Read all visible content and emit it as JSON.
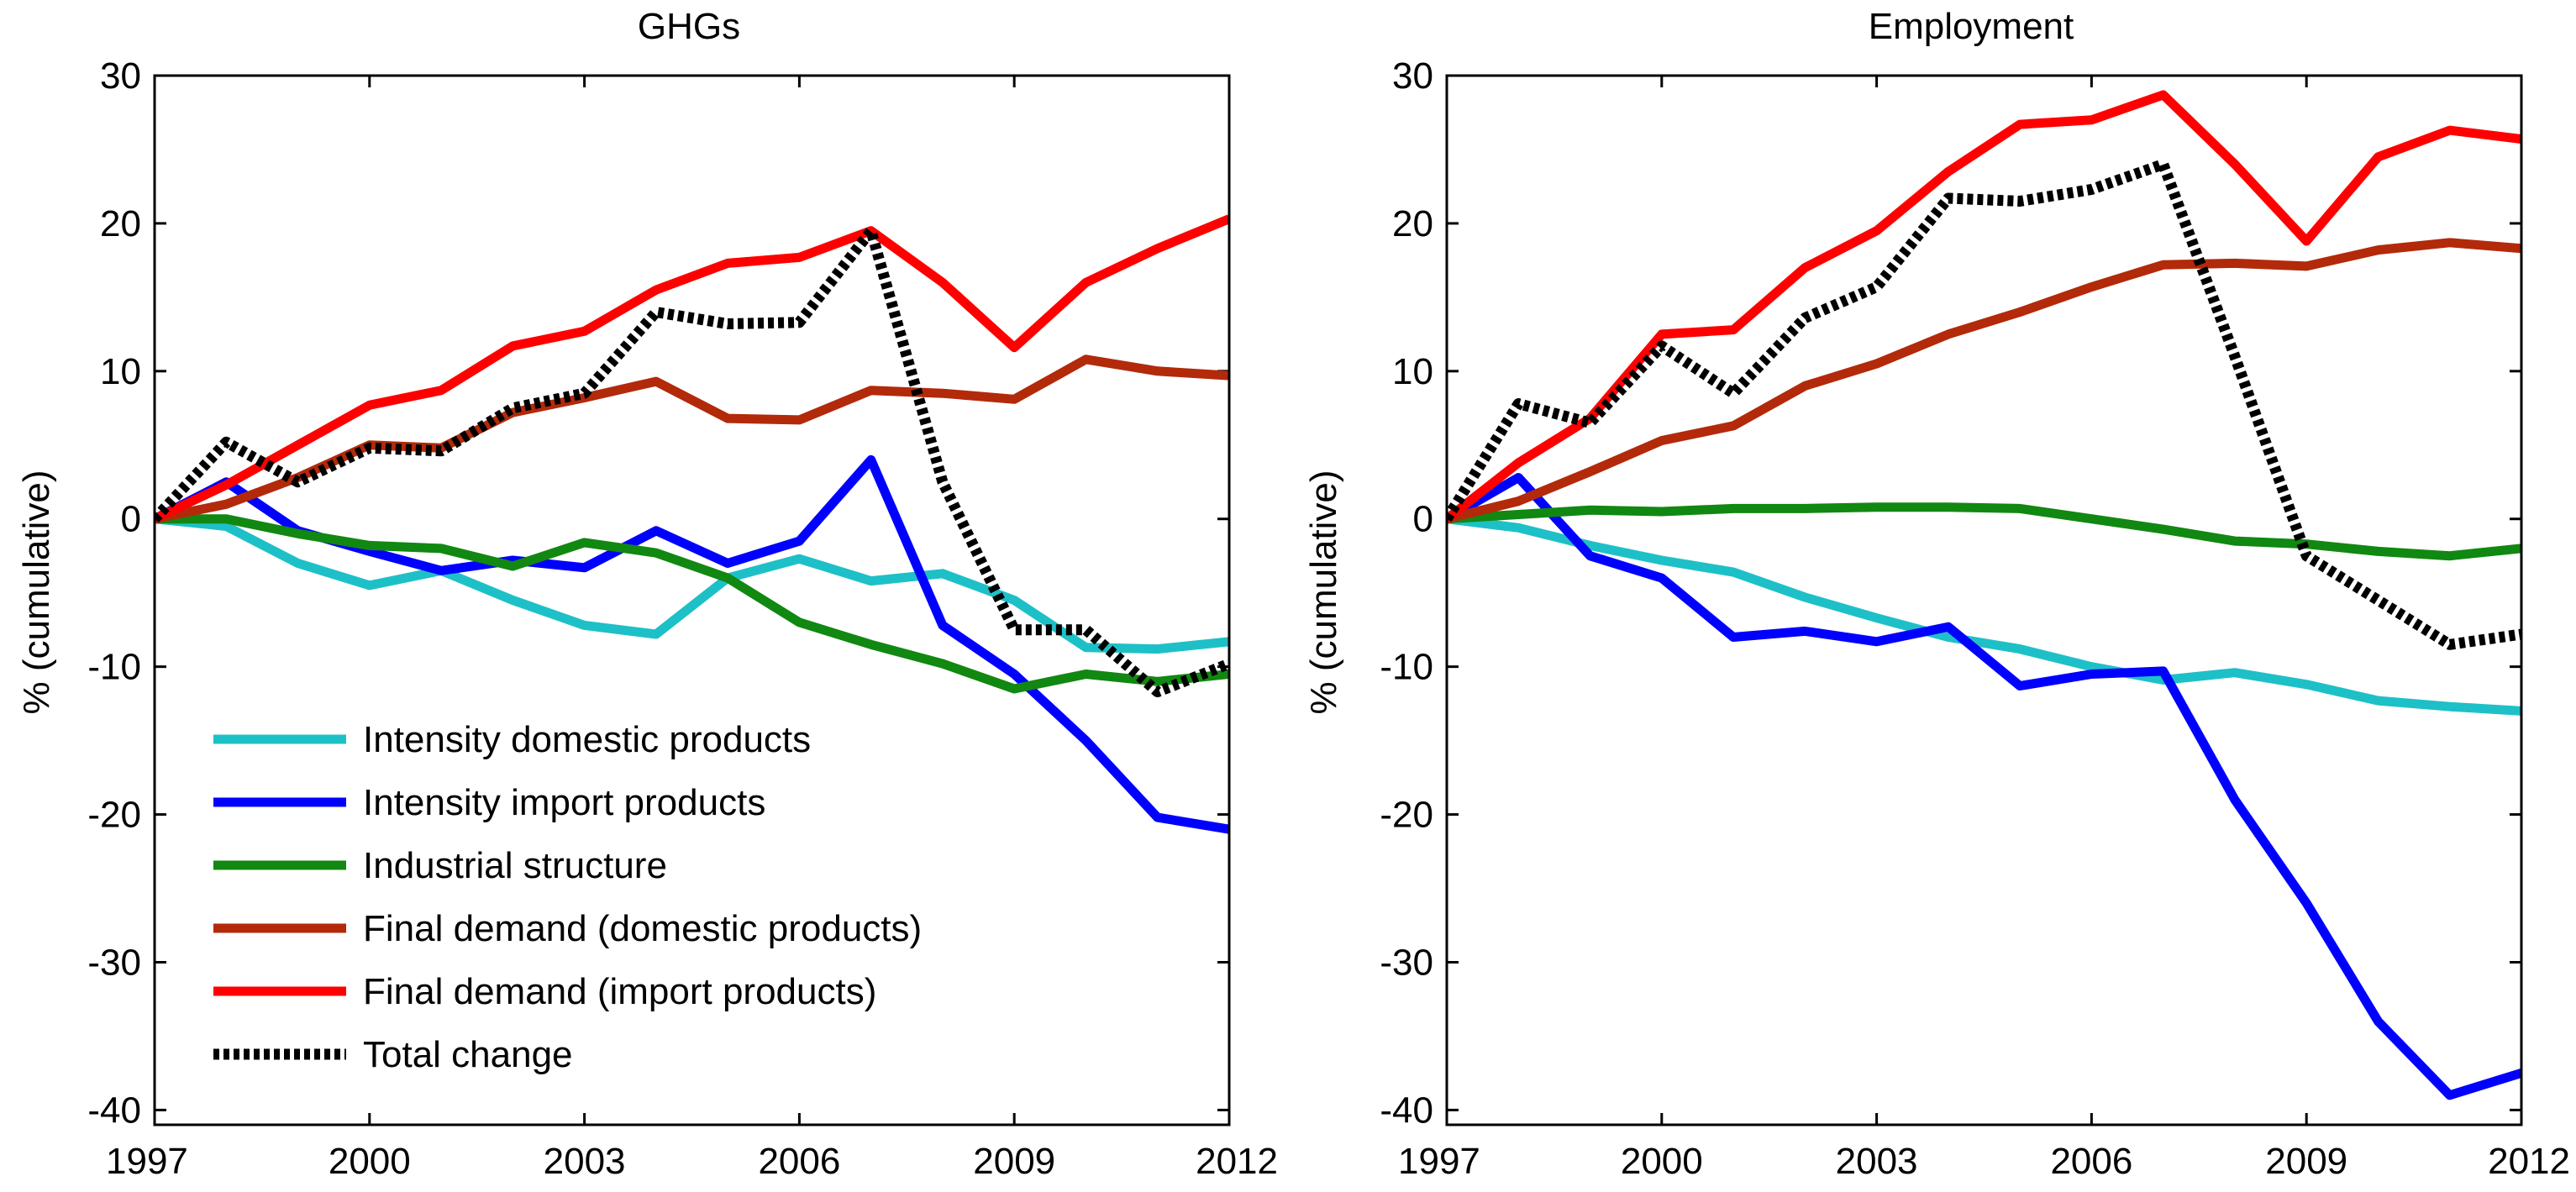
{
  "chart_data": [
    {
      "type": "line",
      "title": "GHGs",
      "xlabel": "",
      "ylabel": "% (cumulative)",
      "xlim": [
        1997,
        2012
      ],
      "ylim": [
        -41,
        30
      ],
      "xticks": [
        1997,
        2000,
        2003,
        2006,
        2009,
        2012
      ],
      "xtick_labels": [
        "1997",
        "2000",
        "2003",
        "2006",
        "2009",
        "2012"
      ],
      "yticks": [
        -40,
        -30,
        -20,
        -10,
        0,
        10,
        20,
        30
      ],
      "ytick_labels": [
        "-40",
        "-30",
        "-20",
        "-10",
        "0",
        "10",
        "20",
        "30"
      ],
      "grid": false,
      "legend_position": "bottom-left",
      "x": [
        1997,
        1998,
        1999,
        2000,
        2001,
        2002,
        2003,
        2004,
        2005,
        2006,
        2007,
        2008,
        2009,
        2010,
        2011,
        2012
      ],
      "series": [
        {
          "name": "Intensity domestic products",
          "color": "#1EC0C8",
          "dashed": false,
          "values": [
            0,
            -0.5,
            -3,
            -4.5,
            -3.5,
            -5.5,
            -7.2,
            -7.8,
            -4,
            -2.7,
            -4.2,
            -3.7,
            -5.5,
            -8.7,
            -8.8,
            -8.3
          ]
        },
        {
          "name": "Intensity import products",
          "color": "#0000FF",
          "dashed": false,
          "values": [
            0,
            2.5,
            -0.8,
            -2.2,
            -3.5,
            -2.8,
            -3.3,
            -0.8,
            -3,
            -1.5,
            4,
            -7.2,
            -10.5,
            -15,
            -20.2,
            -21
          ]
        },
        {
          "name": "Industrial structure",
          "color": "#118811",
          "dashed": false,
          "values": [
            0,
            0,
            -1,
            -1.8,
            -2,
            -3.2,
            -1.6,
            -2.3,
            -4,
            -7,
            -8.5,
            -9.8,
            -11.5,
            -10.5,
            -11,
            -10.5
          ]
        },
        {
          "name": "Final demand (domestic products)",
          "color": "#B22A0A",
          "dashed": false,
          "values": [
            0,
            1,
            2.8,
            5,
            4.8,
            7.2,
            8.2,
            9.3,
            6.8,
            6.7,
            8.7,
            8.5,
            8.1,
            10.8,
            10,
            9.7
          ]
        },
        {
          "name": "Final demand (import products)",
          "color": "#FF0000",
          "dashed": false,
          "values": [
            0,
            2.3,
            5,
            7.7,
            8.7,
            11.7,
            12.7,
            15.5,
            17.3,
            17.7,
            19.5,
            16,
            11.6,
            16,
            18.3,
            20.3
          ]
        },
        {
          "name": "Total change",
          "color": "#000000",
          "dashed": true,
          "values": [
            0,
            5.2,
            2.5,
            4.8,
            4.6,
            7.5,
            8.5,
            14,
            13.2,
            13.3,
            19.5,
            2.5,
            -7.5,
            -7.5,
            -11.7,
            -9.8
          ]
        }
      ]
    },
    {
      "type": "line",
      "title": "Employment",
      "xlabel": "",
      "ylabel": "% (cumulative)",
      "xlim": [
        1997,
        2012
      ],
      "ylim": [
        -41,
        30
      ],
      "xticks": [
        1997,
        2000,
        2003,
        2006,
        2009,
        2012
      ],
      "xtick_labels": [
        "1997",
        "2000",
        "2003",
        "2006",
        "2009",
        "2012"
      ],
      "yticks": [
        -40,
        -30,
        -20,
        -10,
        0,
        10,
        20,
        30
      ],
      "ytick_labels": [
        "-40",
        "-30",
        "-20",
        "-10",
        "0",
        "10",
        "20",
        "30"
      ],
      "grid": false,
      "x": [
        1997,
        1998,
        1999,
        2000,
        2001,
        2002,
        2003,
        2004,
        2005,
        2006,
        2007,
        2008,
        2009,
        2010,
        2011,
        2012
      ],
      "series": [
        {
          "name": "Intensity domestic products",
          "color": "#1EC0C8",
          "dashed": false,
          "values": [
            0,
            -0.6,
            -1.8,
            -2.8,
            -3.6,
            -5.3,
            -6.7,
            -8,
            -8.8,
            -10,
            -10.9,
            -10.4,
            -11.2,
            -12.3,
            -12.7,
            -13
          ]
        },
        {
          "name": "Intensity import products",
          "color": "#0000FF",
          "dashed": false,
          "values": [
            0,
            2.8,
            -2.5,
            -4,
            -8,
            -7.6,
            -8.3,
            -7.3,
            -11.3,
            -10.5,
            -10.3,
            -19,
            -26,
            -34,
            -39,
            -37.5
          ]
        },
        {
          "name": "Industrial structure",
          "color": "#118811",
          "dashed": false,
          "values": [
            0,
            0.3,
            0.6,
            0.5,
            0.7,
            0.7,
            0.8,
            0.8,
            0.7,
            0,
            -0.7,
            -1.5,
            -1.7,
            -2.2,
            -2.5,
            -2
          ]
        },
        {
          "name": "Final demand (domestic products)",
          "color": "#B22A0A",
          "dashed": false,
          "values": [
            0,
            1.2,
            3.2,
            5.3,
            6.3,
            9,
            10.5,
            12.5,
            14,
            15.7,
            17.2,
            17.3,
            17.1,
            18.2,
            18.7,
            18.3
          ]
        },
        {
          "name": "Final demand (import products)",
          "color": "#FF0000",
          "dashed": false,
          "values": [
            0,
            3.8,
            6.8,
            12.5,
            12.8,
            17,
            19.5,
            23.5,
            26.7,
            27,
            28.7,
            24,
            18.8,
            24.5,
            26.3,
            25.7
          ]
        },
        {
          "name": "Total change",
          "color": "#000000",
          "dashed": true,
          "values": [
            0,
            7.8,
            6.5,
            11.7,
            8.5,
            13.6,
            15.7,
            21.7,
            21.5,
            22.3,
            24,
            11,
            -2.5,
            -5.5,
            -8.5,
            -7.8
          ]
        }
      ]
    }
  ]
}
